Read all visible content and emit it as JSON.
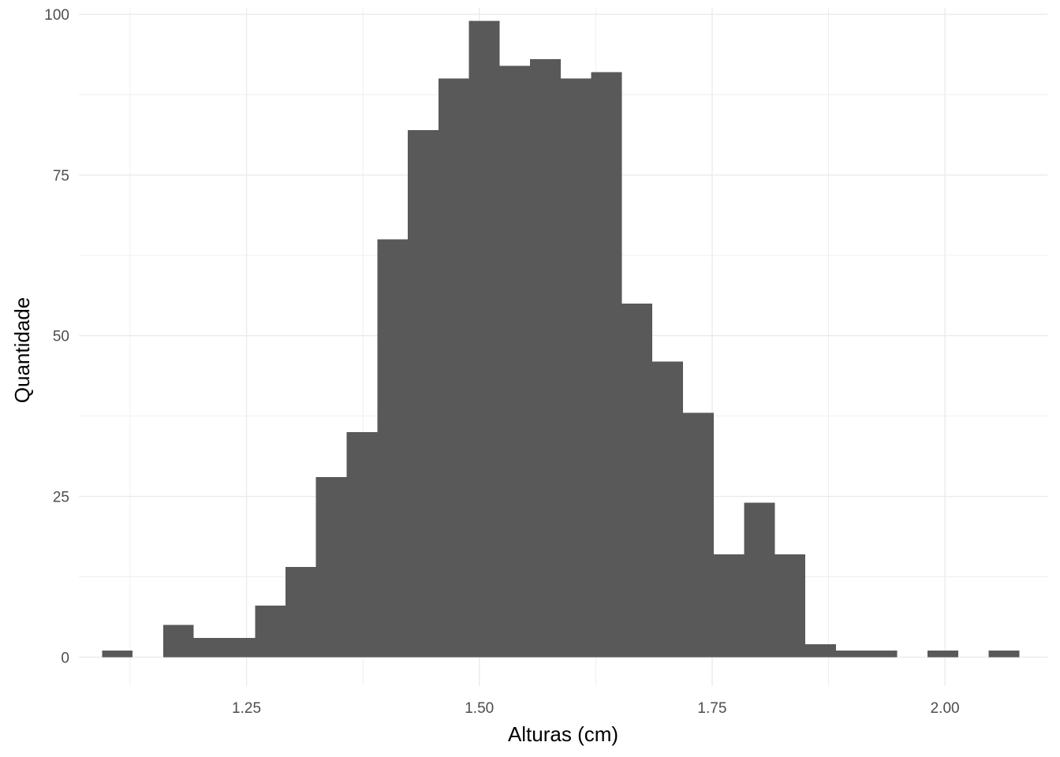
{
  "chart_data": {
    "type": "bar",
    "subtype": "histogram",
    "title": "",
    "xlabel": "Alturas (cm)",
    "ylabel": "Quantidade",
    "xlim": [
      1.07,
      2.11
    ],
    "ylim": [
      -4.5,
      101
    ],
    "x_ticks": [
      "1.25",
      "1.50",
      "1.75",
      "2.00"
    ],
    "y_ticks": [
      "0",
      "25",
      "50",
      "75",
      "100"
    ],
    "grid": true,
    "bar_color": "#595959",
    "bins": [
      {
        "start": 1.0949,
        "end": 1.1277,
        "count": 1
      },
      {
        "start": 1.1277,
        "end": 1.1606,
        "count": 0
      },
      {
        "start": 1.1606,
        "end": 1.1934,
        "count": 5
      },
      {
        "start": 1.1934,
        "end": 1.2262,
        "count": 3
      },
      {
        "start": 1.2262,
        "end": 1.2591,
        "count": 3
      },
      {
        "start": 1.2591,
        "end": 1.2919,
        "count": 8
      },
      {
        "start": 1.2919,
        "end": 1.3247,
        "count": 14
      },
      {
        "start": 1.3247,
        "end": 1.3576,
        "count": 28
      },
      {
        "start": 1.3576,
        "end": 1.3904,
        "count": 35
      },
      {
        "start": 1.3904,
        "end": 1.4232,
        "count": 65
      },
      {
        "start": 1.4232,
        "end": 1.4561,
        "count": 82
      },
      {
        "start": 1.4561,
        "end": 1.4889,
        "count": 90
      },
      {
        "start": 1.4889,
        "end": 1.5217,
        "count": 99
      },
      {
        "start": 1.5217,
        "end": 1.5546,
        "count": 92
      },
      {
        "start": 1.5546,
        "end": 1.5874,
        "count": 93
      },
      {
        "start": 1.5874,
        "end": 1.6202,
        "count": 90
      },
      {
        "start": 1.6202,
        "end": 1.6531,
        "count": 91
      },
      {
        "start": 1.6531,
        "end": 1.6859,
        "count": 55
      },
      {
        "start": 1.6859,
        "end": 1.7187,
        "count": 46
      },
      {
        "start": 1.7187,
        "end": 1.7516,
        "count": 38
      },
      {
        "start": 1.7516,
        "end": 1.7844,
        "count": 16
      },
      {
        "start": 1.7844,
        "end": 1.8172,
        "count": 24
      },
      {
        "start": 1.8172,
        "end": 1.8501,
        "count": 16
      },
      {
        "start": 1.8501,
        "end": 1.8829,
        "count": 2
      },
      {
        "start": 1.8829,
        "end": 1.9157,
        "count": 1
      },
      {
        "start": 1.9157,
        "end": 1.9486,
        "count": 1
      },
      {
        "start": 1.9486,
        "end": 1.9814,
        "count": 0
      },
      {
        "start": 1.9814,
        "end": 2.0142,
        "count": 1
      },
      {
        "start": 2.0142,
        "end": 2.0471,
        "count": 0
      },
      {
        "start": 2.0471,
        "end": 2.0799,
        "count": 1
      }
    ]
  }
}
